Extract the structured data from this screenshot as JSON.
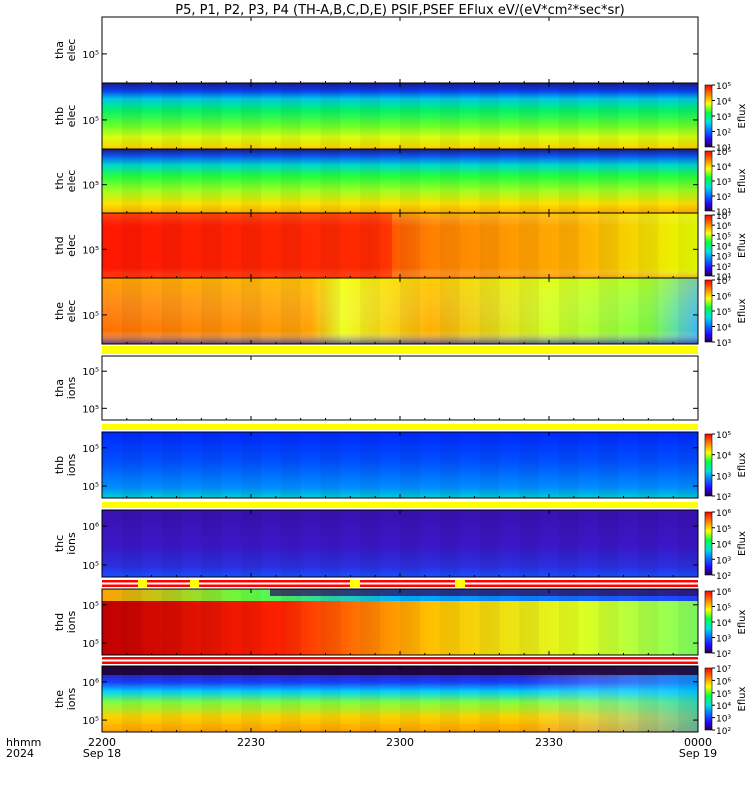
{
  "title": "P5, P1, P2, P3, P4 (TH-A,B,C,D,E) PSIF,PSEF EFlux eV/(eV*cm²*sec*sr)",
  "colors": {
    "background": "#ffffff",
    "bar_yellow": "#ffff00",
    "bar_red": "#ff0000"
  },
  "chart_data": {
    "type": "heatmap",
    "time_axis": {
      "range": [
        "2024-09-18 22:00",
        "2024-09-19 00:00"
      ],
      "row_labels": [
        "hhmm",
        "2024"
      ],
      "ticks": [
        {
          "t": "2024-09-18 22:00",
          "label": "2200",
          "date": "Sep 18"
        },
        {
          "t": "2024-09-18 22:30",
          "label": "2230",
          "date": ""
        },
        {
          "t": "2024-09-18 23:00",
          "label": "2300",
          "date": ""
        },
        {
          "t": "2024-09-18 23:30",
          "label": "2330",
          "date": ""
        },
        {
          "t": "2024-09-19 00:00",
          "label": "0000",
          "date": "Sep 19"
        }
      ]
    },
    "panels": [
      {
        "id": "tha-elec",
        "ylabel": [
          "tha",
          "elec"
        ],
        "ytick": "10⁵",
        "empty": true,
        "colorbar": null
      },
      {
        "id": "thb-elec",
        "ylabel": [
          "thb",
          "elec"
        ],
        "ytick": "10⁵",
        "empty": false,
        "colorbar": {
          "label": "Eflux",
          "log_min": 1,
          "log_max": 5,
          "ticks": [
            1,
            2,
            3,
            4,
            5
          ]
        }
      },
      {
        "id": "thc-elec",
        "ylabel": [
          "thc",
          "elec"
        ],
        "ytick": "10⁵",
        "empty": false,
        "colorbar": {
          "label": "Eflux",
          "log_min": 1,
          "log_max": 5,
          "ticks": [
            1,
            2,
            3,
            4,
            5
          ]
        }
      },
      {
        "id": "thd-elec",
        "ylabel": [
          "thd",
          "elec"
        ],
        "ytick": "10⁵",
        "empty": false,
        "colorbar": {
          "label": "Eflux",
          "log_min": 1,
          "log_max": 7,
          "ticks": [
            1,
            2,
            3,
            4,
            5,
            6,
            7
          ]
        }
      },
      {
        "id": "the-elec",
        "ylabel": [
          "the",
          "elec"
        ],
        "ytick": "10⁵",
        "empty": false,
        "colorbar": {
          "label": "Eflux",
          "log_min": 3,
          "log_max": 7,
          "ticks": [
            3,
            4,
            5,
            6,
            7
          ]
        }
      },
      {
        "id": "tha-ions",
        "ylabel": [
          "tha",
          "ions"
        ],
        "yticks": [
          "10⁵",
          "10⁵"
        ],
        "empty": true,
        "colorbar": null
      },
      {
        "id": "thb-ions",
        "ylabel": [
          "thb",
          "ions"
        ],
        "yticks": [
          "10⁵",
          "10⁵"
        ],
        "empty": false,
        "colorbar": {
          "label": "Eflux",
          "log_min": 2,
          "log_max": 5,
          "ticks": [
            2,
            3,
            4,
            5
          ]
        }
      },
      {
        "id": "thc-ions",
        "ylabel": [
          "thc",
          "ions"
        ],
        "yticks": [
          "10⁶",
          "10⁵"
        ],
        "empty": false,
        "colorbar": {
          "label": "Eflux",
          "log_min": 2,
          "log_max": 6,
          "ticks": [
            2,
            3,
            4,
            5,
            6
          ]
        }
      },
      {
        "id": "thd-ions",
        "ylabel": [
          "thd",
          "ions"
        ],
        "yticks": [
          "10⁵",
          "10⁵"
        ],
        "empty": false,
        "colorbar": {
          "label": "Eflux",
          "log_min": 2,
          "log_max": 6,
          "ticks": [
            2,
            3,
            4,
            5,
            6
          ]
        }
      },
      {
        "id": "the-ions",
        "ylabel": [
          "the",
          "ions"
        ],
        "yticks": [
          "10⁶",
          "10⁵"
        ],
        "empty": false,
        "colorbar": {
          "label": "Eflux",
          "log_min": 2,
          "log_max": 7,
          "ticks": [
            2,
            3,
            4,
            5,
            6,
            7
          ]
        }
      }
    ]
  }
}
